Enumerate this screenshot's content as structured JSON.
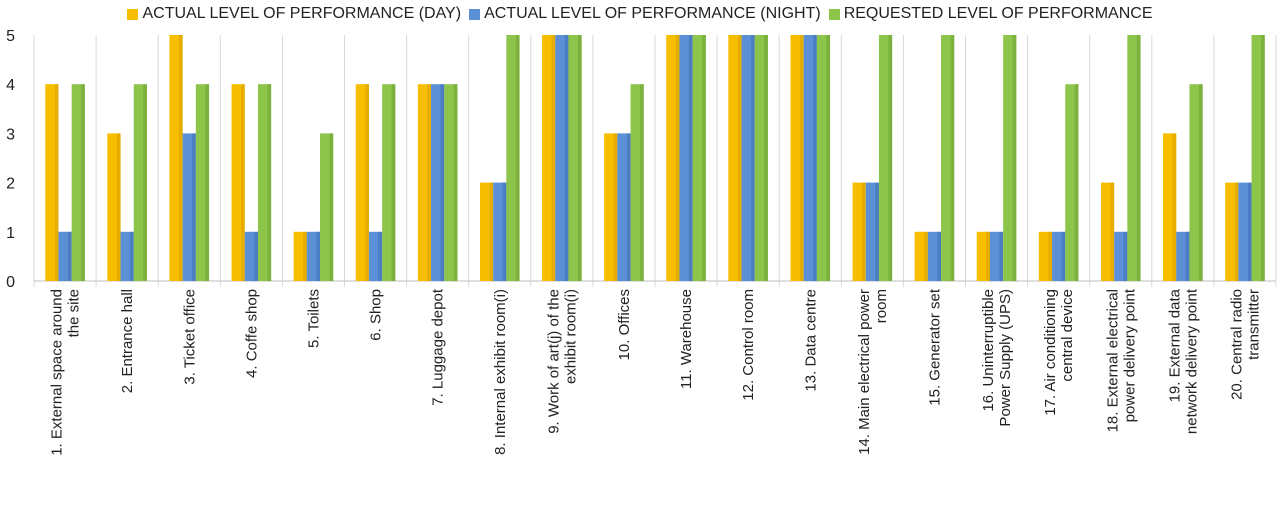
{
  "chart_data": {
    "type": "bar",
    "categories": [
      [
        "1. External space around",
        "the site"
      ],
      [
        "2. Entrance hall"
      ],
      [
        "3. Ticket office"
      ],
      [
        "4. Coffe shop"
      ],
      [
        "5. Toilets"
      ],
      [
        "6. Shop"
      ],
      [
        "7. Luggage depot"
      ],
      [
        "8. Internal exhibit room(i)"
      ],
      [
        "9. Work of art(j) of the",
        "exhibit room(i)"
      ],
      [
        "10. Offices"
      ],
      [
        "11. Warehouse"
      ],
      [
        "12. Control room"
      ],
      [
        "13. Data centre"
      ],
      [
        "14. Main electrical power",
        "room"
      ],
      [
        "15. Generator set"
      ],
      [
        "16. Uninterruptible",
        "Power Supply (UPS)"
      ],
      [
        "17. Air conditioning",
        "central device"
      ],
      [
        "18. External electrical",
        "power delivery point"
      ],
      [
        "19. External data",
        "network delivery point"
      ],
      [
        "20. Central radio",
        "transmitter"
      ]
    ],
    "series": [
      {
        "name": "ACTUAL LEVEL OF PERFORMANCE (DAY)",
        "color": "#f7be00",
        "values": [
          4,
          3,
          5,
          4,
          1,
          4,
          4,
          2,
          5,
          3,
          5,
          5,
          5,
          2,
          1,
          1,
          1,
          2,
          3,
          2
        ]
      },
      {
        "name": "ACTUAL LEVEL OF PERFORMANCE (NIGHT)",
        "color": "#5b8fd6",
        "values": [
          1,
          1,
          3,
          1,
          1,
          1,
          4,
          2,
          5,
          3,
          5,
          5,
          5,
          2,
          1,
          1,
          1,
          1,
          1,
          2
        ]
      },
      {
        "name": "REQUESTED LEVEL OF PERFORMANCE",
        "color": "#8dc44a",
        "values": [
          4,
          4,
          4,
          4,
          3,
          4,
          4,
          5,
          5,
          4,
          5,
          5,
          5,
          5,
          5,
          5,
          4,
          5,
          4,
          5
        ]
      }
    ],
    "yticks": [
      "0",
      "1",
      "2",
      "3",
      "4",
      "5"
    ],
    "ylim": [
      0,
      5
    ],
    "grid": "vertical separators",
    "legend": "top"
  }
}
